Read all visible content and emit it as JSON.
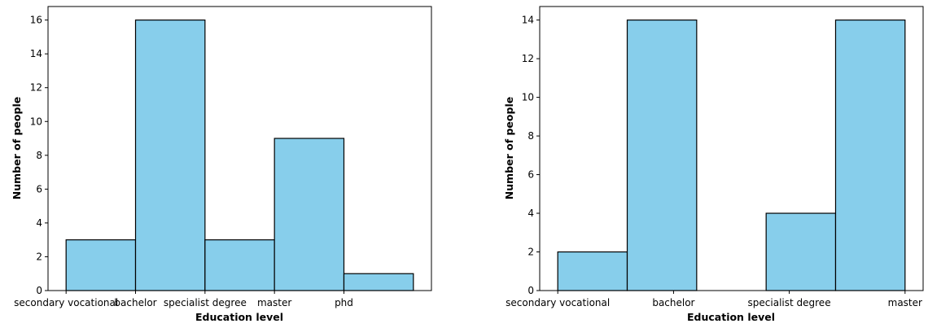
{
  "chart_data": [
    {
      "type": "bar",
      "xlabel": "Education level",
      "ylabel": "Number of people",
      "x_ticks": [
        "secondary vocational",
        "bachelor",
        "specialist degree",
        "master",
        "phd"
      ],
      "bins": [
        {
          "start": 0,
          "end": 1,
          "value": 3
        },
        {
          "start": 1,
          "end": 2,
          "value": 16
        },
        {
          "start": 2,
          "end": 3,
          "value": 3
        },
        {
          "start": 3,
          "end": 4,
          "value": 9
        },
        {
          "start": 4,
          "end": 5,
          "value": 1
        }
      ],
      "xlim": [
        -0.26,
        5.26
      ],
      "ylim": [
        0,
        16.8
      ],
      "y_ticks": [
        0,
        2,
        4,
        6,
        8,
        10,
        12,
        14,
        16
      ],
      "bar_color": "#87ceeb",
      "grid": false
    },
    {
      "type": "bar",
      "xlabel": "Education level",
      "ylabel": "Number of people",
      "x_ticks": [
        "secondary vocational",
        "bachelor",
        "specialist degree",
        "master"
      ],
      "bins": [
        {
          "start": 0,
          "end": 1,
          "value": 2
        },
        {
          "start": 1,
          "end": 2,
          "value": 14
        },
        {
          "start": 2,
          "end": 3,
          "value": 0
        },
        {
          "start": 3,
          "end": 4,
          "value": 4
        },
        {
          "start": 4,
          "end": 5,
          "value": 14
        }
      ],
      "x_tick_positions": [
        0,
        1.667,
        3.333,
        5
      ],
      "xlim": [
        -0.26,
        5.26
      ],
      "ylim": [
        0,
        14.7
      ],
      "y_ticks": [
        0,
        2,
        4,
        6,
        8,
        10,
        12,
        14
      ],
      "bar_color": "#87ceeb",
      "grid": false
    }
  ]
}
